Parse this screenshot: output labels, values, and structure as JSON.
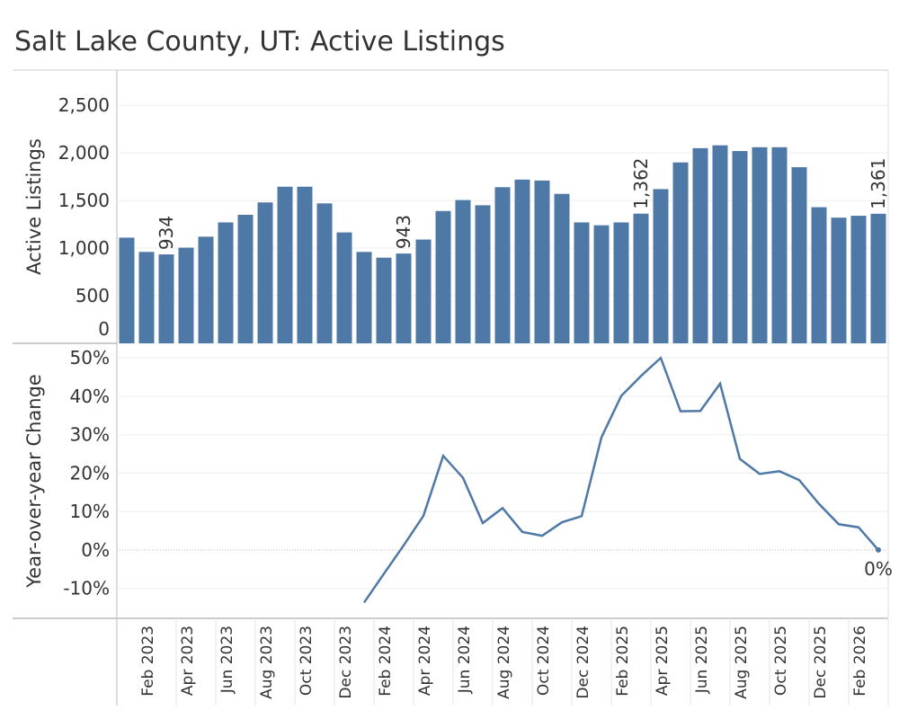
{
  "chart_data": [
    {
      "type": "bar",
      "title": "Salt Lake County, UT: Active Listings",
      "y_label": "Active Listings",
      "color": "#4e79a7",
      "values": [
        1110,
        960,
        934,
        1005,
        1120,
        1270,
        1350,
        1480,
        1645,
        1645,
        1470,
        1165,
        960,
        900,
        943,
        1090,
        1390,
        1505,
        1450,
        1640,
        1720,
        1710,
        1570,
        1270,
        1240,
        1270,
        1362,
        1620,
        1900,
        2050,
        2080,
        2020,
        2060,
        2060,
        1850,
        1430,
        1320,
        1340,
        1361
      ],
      "value_labels": [
        null,
        null,
        "934",
        null,
        null,
        null,
        null,
        null,
        null,
        null,
        null,
        null,
        null,
        null,
        "943",
        null,
        null,
        null,
        null,
        null,
        null,
        null,
        null,
        null,
        null,
        null,
        "1,362",
        null,
        null,
        null,
        null,
        null,
        null,
        null,
        null,
        null,
        null,
        null,
        "1,361"
      ],
      "ylim": [
        0,
        2870
      ],
      "yticks": [
        0,
        500,
        {
          "value": 1000,
          "label": "1,000"
        },
        {
          "value": 1500,
          "label": "1,500"
        },
        {
          "value": 2000,
          "label": "2,000"
        },
        {
          "value": 2500,
          "label": "2,500"
        }
      ],
      "grid": true
    },
    {
      "type": "line",
      "y_label": "Year-over-year Change",
      "color": "#4e79a7",
      "categories": [
        null,
        "Feb 2023",
        null,
        "Apr 2023",
        null,
        "Jun 2023",
        null,
        "Aug 2023",
        null,
        "Oct 2023",
        null,
        "Dec 2023",
        null,
        "Feb 2024",
        null,
        "Apr 2024",
        null,
        "Jun 2024",
        null,
        "Aug 2024",
        null,
        "Oct 2024",
        null,
        "Dec 2024",
        null,
        "Feb 2025",
        null,
        "Apr 2025",
        null,
        "Jun 2025",
        null,
        "Aug 2025",
        null,
        "Oct 2025",
        null,
        "Dec 2025",
        null,
        "Feb 2026",
        null
      ],
      "values": [
        null,
        null,
        null,
        null,
        null,
        null,
        null,
        null,
        null,
        null,
        null,
        null,
        -13.7,
        -6.2,
        1.2,
        8.9,
        24.5,
        18.8,
        7.0,
        10.9,
        4.7,
        3.7,
        7.2,
        8.8,
        29.3,
        40.1,
        45.3,
        50.0,
        36.1,
        36.2,
        43.3,
        23.7,
        19.8,
        20.5,
        18.2,
        12.0,
        6.7,
        5.9,
        0
      ],
      "value_labels": [
        null,
        null,
        null,
        null,
        null,
        null,
        null,
        null,
        null,
        null,
        null,
        null,
        null,
        null,
        null,
        null,
        null,
        null,
        null,
        null,
        null,
        null,
        null,
        null,
        null,
        null,
        null,
        null,
        null,
        null,
        null,
        null,
        null,
        null,
        null,
        null,
        null,
        null,
        "0%"
      ],
      "ylim": [
        -17.8,
        53.8
      ],
      "yticks": [
        {
          "value": -10,
          "label": "-10%"
        },
        {
          "value": 0,
          "label": "0%"
        },
        {
          "value": 10,
          "label": "10%"
        },
        {
          "value": 20,
          "label": "20%"
        },
        {
          "value": 30,
          "label": "30%"
        },
        {
          "value": 40,
          "label": "40%"
        },
        {
          "value": 50,
          "label": "50%"
        }
      ],
      "grid": true
    }
  ]
}
